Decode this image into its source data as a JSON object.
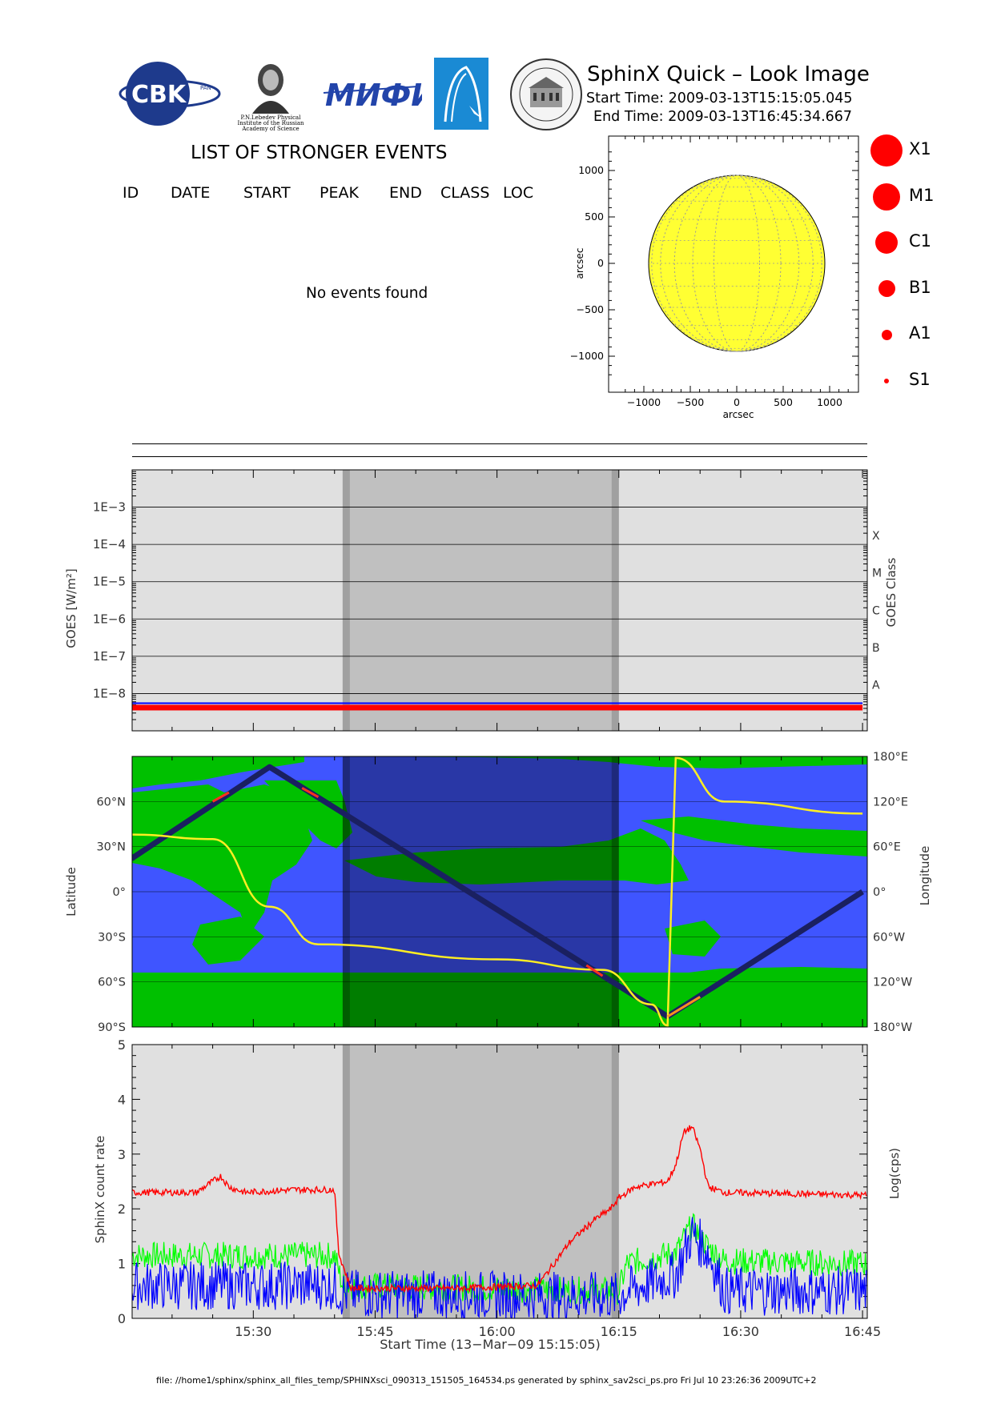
{
  "header": {
    "title": "SphinX Quick – Look Image",
    "start_time": "Start Time: 2009-03-13T15:15:05.045",
    "end_time": "End Time: 2009-03-13T16:45:34.667"
  },
  "logos": {
    "cbk_text": "CBK",
    "cbk_sub": "PAN",
    "lebedev_caption": [
      "P.N.Lebedev Physical",
      "Institute of the Russian",
      "Academy of Science"
    ],
    "mifi_text": "МИФИ"
  },
  "events": {
    "title": "LIST OF STRONGER EVENTS",
    "columns": [
      "ID",
      "DATE",
      "START",
      "PEAK",
      "END",
      "CLASS",
      "LOC"
    ],
    "message": "No events found"
  },
  "sun_map": {
    "xlabel": "arcsec",
    "ylabel": "arcsec",
    "xticks": [
      "−1000",
      "−500",
      "0",
      "500",
      "1000"
    ],
    "yticks": [
      "1000",
      "500",
      "0",
      "−500",
      "−1000"
    ],
    "disk_color": "#ffff33"
  },
  "size_legend": [
    {
      "label": "X1",
      "r": 20
    },
    {
      "label": "M1",
      "r": 17
    },
    {
      "label": "C1",
      "r": 14
    },
    {
      "label": "B1",
      "r": 10.5
    },
    {
      "label": "A1",
      "r": 6.5
    },
    {
      "label": "S1",
      "r": 3
    }
  ],
  "goes_panel": {
    "ylabel": "GOES  [W/m²]",
    "right_label": "GOES Class",
    "yticks": [
      "1E−3",
      "1E−4",
      "1E−5",
      "1E−6",
      "1E−7",
      "1E−8"
    ],
    "classes": [
      "X",
      "M",
      "C",
      "B",
      "A"
    ]
  },
  "map_panel": {
    "ylabel": "Latitude",
    "right_label": "Longitude",
    "lat_ticks": [
      "60°N",
      "30°N",
      "0°",
      "30°S",
      "60°S",
      "90°S"
    ],
    "lon_ticks": [
      "180°E",
      "120°E",
      "60°E",
      "0°",
      "60°W",
      "120°W",
      "180°W"
    ]
  },
  "rate_panel": {
    "ylabel": "SphinX count rate",
    "right_label": "Log(cps)",
    "yticks": [
      "0",
      "1",
      "2",
      "3",
      "4",
      "5"
    ],
    "xticks": [
      "15:30",
      "15:45",
      "16:00",
      "16:15",
      "16:30",
      "16:45"
    ],
    "xlabel": "Start Time (13−Mar−09 15:15:05)"
  },
  "colors": {
    "red": "#ff0000",
    "green": "#00ff00",
    "blue": "#0000ff",
    "ocean": "#3f55ff",
    "land": "#00c000",
    "panel_bg": "#e0e0e0",
    "eclipse": "#c0c0c0",
    "eclipse_edge": "#a0a0a0",
    "track": "#1a2060",
    "yellow": "#ffee22"
  },
  "chart_data": [
    {
      "type": "line",
      "title": "",
      "xlabel": "",
      "ylabel": "GOES [W/m²]",
      "x_range": [
        "15:15:05",
        "16:45:35"
      ],
      "y_scale": "log",
      "ylim": [
        1e-09,
        0.01
      ],
      "shaded_interval": [
        "15:41",
        "16:15"
      ],
      "series": [
        {
          "name": "",
          "color": "#0000ff",
          "x": [
            "15:15",
            "16:45"
          ],
          "y": [
            5.5e-09,
            5.5e-09
          ]
        },
        {
          "name": "",
          "color": "#ff0000",
          "x": [
            "15:15",
            "16:45"
          ],
          "y": [
            4.2e-09,
            4.2e-09
          ]
        }
      ]
    },
    {
      "type": "line",
      "title": "",
      "ylabel": "Latitude",
      "x_range": [
        "15:15:05",
        "16:45:35"
      ],
      "ylim": [
        -90,
        90
      ],
      "series": [
        {
          "name": "",
          "color": "#1a2060",
          "x": [
            "15:15",
            "15:32",
            "16:21",
            "16:45"
          ],
          "y": [
            22,
            83,
            -83,
            0
          ]
        },
        {
          "name": "",
          "color": "#ffee22",
          "x": [
            "15:15",
            "15:25",
            "15:32",
            "15:38",
            "16:00",
            "16:13",
            "16:19",
            "16:21",
            "16:22",
            "16:28",
            "16:45"
          ],
          "y": [
            38,
            35,
            -10,
            -35,
            -45,
            -52,
            -75,
            -89,
            89,
            60,
            52
          ]
        }
      ]
    },
    {
      "type": "line",
      "title": "",
      "xlabel": "Start Time (13−Mar−09 15:15:05)",
      "ylabel": "SphinX count rate",
      "xticks": [
        "15:30",
        "15:45",
        "16:00",
        "16:15",
        "16:30",
        "16:45"
      ],
      "ylim": [
        0,
        5
      ],
      "series": [
        {
          "name": "",
          "color": "#ff0000",
          "x": [
            "15:15",
            "15:23",
            "15:26",
            "15:27",
            "15:29",
            "15:35",
            "15:40",
            "15:40.5",
            "15:42",
            "15:55",
            "16:05",
            "16:09",
            "16:12",
            "16:14",
            "16:15",
            "16:17",
            "16:21",
            "16:22",
            "16:23",
            "16:24",
            "16:25",
            "16:26",
            "16:28",
            "16:45"
          ],
          "y": [
            2.3,
            2.3,
            2.6,
            2.4,
            2.3,
            2.35,
            2.35,
            1.2,
            0.55,
            0.55,
            0.6,
            1.4,
            1.8,
            2.0,
            2.2,
            2.4,
            2.5,
            2.8,
            3.4,
            3.5,
            3.1,
            2.4,
            2.3,
            2.25
          ]
        },
        {
          "name": "",
          "color": "#00ff00",
          "x": [
            "15:15",
            "15:40",
            "15:41",
            "16:15",
            "16:16",
            "16:22",
            "16:24",
            "16:26",
            "16:28",
            "16:45"
          ],
          "y": [
            1.15,
            1.15,
            0.6,
            0.5,
            1.0,
            1.2,
            1.7,
            1.3,
            1.05,
            1.0
          ]
        },
        {
          "name": "",
          "color": "#0000ff",
          "x": [
            "15:15",
            "15:40",
            "15:41",
            "16:15",
            "16:16",
            "16:22",
            "16:24",
            "16:26",
            "16:28",
            "16:45"
          ],
          "y": [
            0.6,
            0.6,
            0.45,
            0.4,
            0.5,
            0.8,
            1.55,
            1.2,
            0.5,
            0.5
          ]
        }
      ]
    }
  ]
}
